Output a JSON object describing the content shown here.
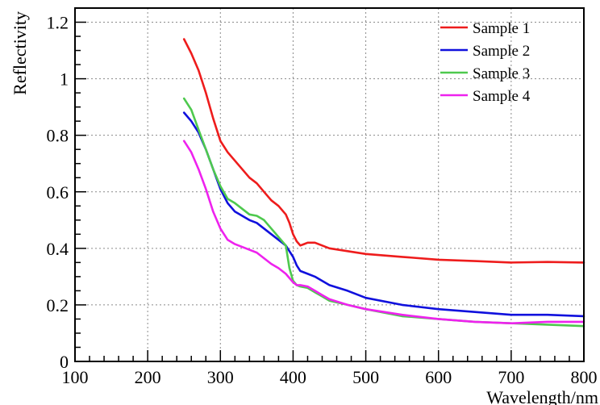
{
  "chart_data": {
    "type": "line",
    "xlabel": "Wavelength/nm",
    "ylabel": "Reflectivity",
    "xlim": [
      100,
      800
    ],
    "ylim": [
      0,
      1.25
    ],
    "x_ticks": [
      100,
      200,
      300,
      400,
      500,
      600,
      700,
      800
    ],
    "y_ticks": [
      0,
      0.2,
      0.4,
      0.6,
      0.8,
      1,
      1.2
    ],
    "x_tick_labels": [
      "100",
      "200",
      "300",
      "400",
      "500",
      "600",
      "700",
      "800"
    ],
    "y_tick_labels": [
      "0",
      "0.2",
      "0.4",
      "0.6",
      "0.8",
      "1",
      "1.2"
    ],
    "grid": true,
    "legend_position": "top-right",
    "series": [
      {
        "name": "Sample 1",
        "color": "#ee1c1c",
        "x": [
          250,
          260,
          270,
          280,
          290,
          300,
          310,
          320,
          330,
          340,
          350,
          360,
          370,
          380,
          390,
          395,
          400,
          405,
          410,
          415,
          420,
          430,
          440,
          450,
          475,
          500,
          550,
          600,
          650,
          700,
          750,
          800
        ],
        "y": [
          1.14,
          1.09,
          1.03,
          0.95,
          0.86,
          0.78,
          0.74,
          0.71,
          0.68,
          0.65,
          0.63,
          0.6,
          0.57,
          0.55,
          0.52,
          0.49,
          0.45,
          0.425,
          0.41,
          0.415,
          0.42,
          0.42,
          0.41,
          0.4,
          0.39,
          0.38,
          0.37,
          0.36,
          0.355,
          0.35,
          0.352,
          0.35
        ]
      },
      {
        "name": "Sample 2",
        "color": "#1010dd",
        "x": [
          250,
          260,
          270,
          280,
          290,
          300,
          310,
          320,
          330,
          340,
          350,
          360,
          370,
          380,
          390,
          400,
          405,
          410,
          420,
          430,
          440,
          450,
          475,
          500,
          550,
          600,
          650,
          700,
          750,
          800
        ],
        "y": [
          0.88,
          0.85,
          0.81,
          0.75,
          0.68,
          0.61,
          0.56,
          0.53,
          0.515,
          0.5,
          0.49,
          0.47,
          0.45,
          0.43,
          0.41,
          0.37,
          0.34,
          0.32,
          0.31,
          0.3,
          0.285,
          0.27,
          0.25,
          0.225,
          0.2,
          0.185,
          0.175,
          0.165,
          0.165,
          0.16
        ]
      },
      {
        "name": "Sample 3",
        "color": "#4ec94e",
        "x": [
          250,
          260,
          270,
          280,
          290,
          300,
          310,
          320,
          330,
          340,
          350,
          360,
          370,
          380,
          390,
          395,
          400,
          405,
          410,
          420,
          430,
          440,
          450,
          475,
          500,
          550,
          600,
          650,
          700,
          750,
          800
        ],
        "y": [
          0.93,
          0.89,
          0.82,
          0.75,
          0.68,
          0.62,
          0.575,
          0.56,
          0.54,
          0.52,
          0.515,
          0.5,
          0.47,
          0.44,
          0.41,
          0.33,
          0.285,
          0.27,
          0.265,
          0.26,
          0.245,
          0.23,
          0.215,
          0.2,
          0.185,
          0.16,
          0.15,
          0.14,
          0.135,
          0.13,
          0.125
        ]
      },
      {
        "name": "Sample 4",
        "color": "#ee22ee",
        "x": [
          250,
          260,
          270,
          280,
          290,
          300,
          310,
          320,
          330,
          340,
          350,
          360,
          370,
          380,
          390,
          400,
          405,
          410,
          420,
          430,
          440,
          450,
          475,
          500,
          550,
          600,
          650,
          700,
          750,
          800
        ],
        "y": [
          0.78,
          0.74,
          0.68,
          0.61,
          0.53,
          0.47,
          0.43,
          0.415,
          0.405,
          0.395,
          0.385,
          0.365,
          0.345,
          0.33,
          0.31,
          0.28,
          0.27,
          0.27,
          0.265,
          0.25,
          0.235,
          0.22,
          0.2,
          0.185,
          0.165,
          0.15,
          0.14,
          0.135,
          0.14,
          0.14
        ]
      }
    ]
  }
}
